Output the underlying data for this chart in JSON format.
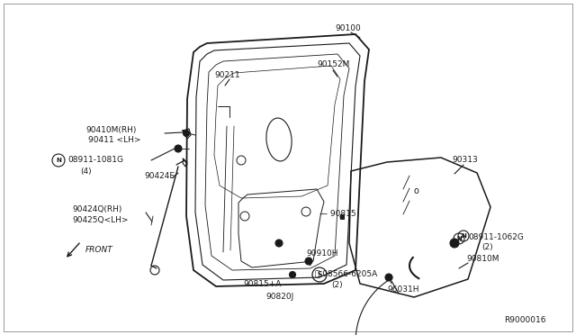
{
  "bg_color": "#ffffff",
  "line_color": "#1a1a1a",
  "text_color": "#1a1a1a",
  "fig_width": 6.4,
  "fig_height": 3.72,
  "dpi": 100,
  "ref_code": "R9000016",
  "door_outer": {
    "x": [
      210,
      200,
      215,
      265,
      350,
      400,
      410,
      390,
      370,
      210
    ],
    "y": [
      300,
      200,
      100,
      50,
      30,
      28,
      80,
      220,
      300,
      300
    ]
  },
  "labels_top": {
    "90100": [
      370,
      38
    ],
    "90211": [
      244,
      88
    ],
    "90152M": [
      355,
      80
    ]
  }
}
